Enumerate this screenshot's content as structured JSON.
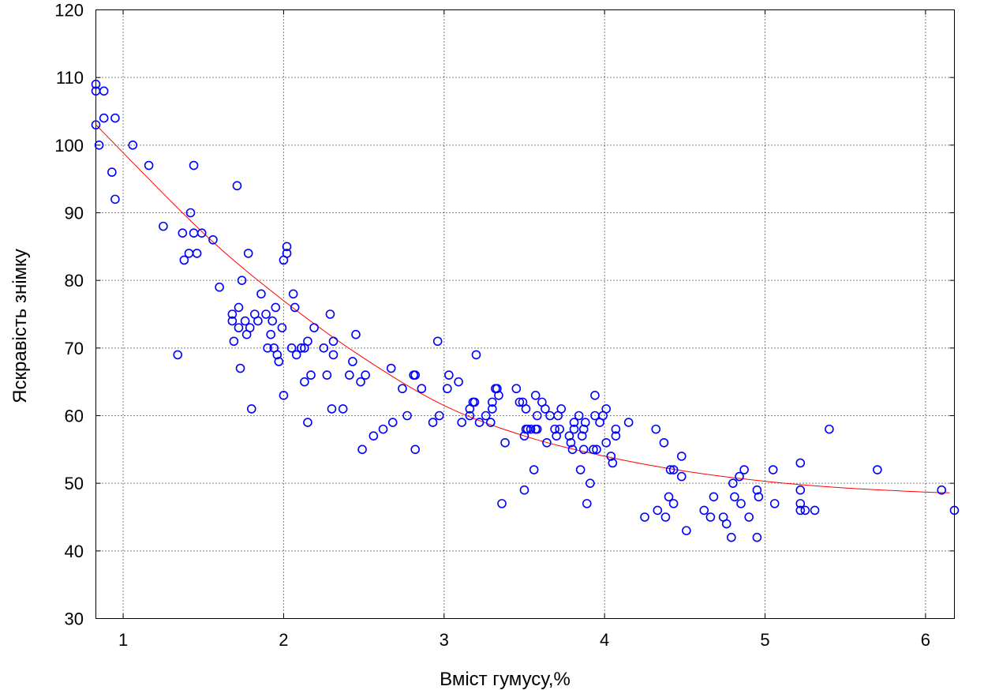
{
  "chart_data": {
    "type": "scatter",
    "xlabel": "Вміст гумусу,%",
    "ylabel": "Яскравість знімку",
    "xlim": [
      0.83,
      6.18
    ],
    "ylim": [
      30,
      120
    ],
    "xticks": [
      1,
      2,
      3,
      4,
      5,
      6
    ],
    "yticks": [
      30,
      40,
      50,
      60,
      70,
      80,
      90,
      100,
      110,
      120
    ],
    "grid": true,
    "point_color": "#0000ff",
    "fit_color": "#ff0000",
    "fit_curve": {
      "type": "quadratic",
      "x": [
        0.83,
        1.5,
        2.0,
        2.5,
        3.0,
        3.5,
        4.0,
        4.5,
        5.0,
        5.5,
        6.0,
        6.15
      ],
      "y": [
        103,
        87,
        77,
        68.5,
        61.5,
        57,
        54,
        51.8,
        50.3,
        49.3,
        48.7,
        48.6
      ]
    },
    "points": [
      [
        0.83,
        109
      ],
      [
        0.83,
        108
      ],
      [
        0.88,
        108
      ],
      [
        0.83,
        103
      ],
      [
        0.88,
        104
      ],
      [
        0.85,
        100
      ],
      [
        0.95,
        104
      ],
      [
        0.93,
        96
      ],
      [
        0.95,
        92
      ],
      [
        1.06,
        100
      ],
      [
        1.16,
        97
      ],
      [
        1.25,
        88
      ],
      [
        1.34,
        69
      ],
      [
        1.37,
        87
      ],
      [
        1.38,
        83
      ],
      [
        1.41,
        84
      ],
      [
        1.42,
        90
      ],
      [
        1.44,
        97
      ],
      [
        1.44,
        87
      ],
      [
        1.46,
        84
      ],
      [
        1.49,
        87
      ],
      [
        1.56,
        86
      ],
      [
        1.6,
        79
      ],
      [
        1.68,
        74
      ],
      [
        1.68,
        75
      ],
      [
        1.69,
        71
      ],
      [
        1.71,
        94
      ],
      [
        1.72,
        76
      ],
      [
        1.72,
        73
      ],
      [
        1.73,
        67
      ],
      [
        1.74,
        80
      ],
      [
        1.76,
        74
      ],
      [
        1.77,
        72
      ],
      [
        1.78,
        84
      ],
      [
        1.79,
        73
      ],
      [
        1.8,
        61
      ],
      [
        1.82,
        75
      ],
      [
        1.84,
        74
      ],
      [
        1.86,
        78
      ],
      [
        1.89,
        75
      ],
      [
        1.9,
        70
      ],
      [
        1.92,
        72
      ],
      [
        1.93,
        74
      ],
      [
        1.94,
        70
      ],
      [
        1.95,
        76
      ],
      [
        1.96,
        69
      ],
      [
        1.97,
        68
      ],
      [
        1.99,
        73
      ],
      [
        2.0,
        83
      ],
      [
        2.0,
        63
      ],
      [
        2.02,
        85
      ],
      [
        2.02,
        84
      ],
      [
        2.05,
        70
      ],
      [
        2.06,
        78
      ],
      [
        2.07,
        76
      ],
      [
        2.08,
        69
      ],
      [
        2.11,
        70
      ],
      [
        2.13,
        65
      ],
      [
        2.13,
        70
      ],
      [
        2.15,
        59
      ],
      [
        2.15,
        71
      ],
      [
        2.17,
        66
      ],
      [
        2.19,
        73
      ],
      [
        2.25,
        70
      ],
      [
        2.27,
        66
      ],
      [
        2.29,
        75
      ],
      [
        2.3,
        61
      ],
      [
        2.31,
        69
      ],
      [
        2.31,
        71
      ],
      [
        2.37,
        61
      ],
      [
        2.41,
        66
      ],
      [
        2.43,
        68
      ],
      [
        2.45,
        72
      ],
      [
        2.48,
        65
      ],
      [
        2.49,
        55
      ],
      [
        2.51,
        66
      ],
      [
        2.56,
        57
      ],
      [
        2.62,
        58
      ],
      [
        2.67,
        67
      ],
      [
        2.68,
        59
      ],
      [
        2.74,
        64
      ],
      [
        2.77,
        60
      ],
      [
        2.81,
        66
      ],
      [
        2.82,
        66
      ],
      [
        2.82,
        55
      ],
      [
        2.86,
        64
      ],
      [
        2.93,
        59
      ],
      [
        2.96,
        71
      ],
      [
        2.97,
        60
      ],
      [
        3.02,
        64
      ],
      [
        3.03,
        66
      ],
      [
        3.09,
        65
      ],
      [
        3.11,
        59
      ],
      [
        3.16,
        61
      ],
      [
        3.16,
        60
      ],
      [
        3.18,
        62
      ],
      [
        3.19,
        62
      ],
      [
        3.2,
        69
      ],
      [
        3.22,
        59
      ],
      [
        3.26,
        60
      ],
      [
        3.29,
        59
      ],
      [
        3.3,
        61
      ],
      [
        3.3,
        62
      ],
      [
        3.32,
        64
      ],
      [
        3.33,
        64
      ],
      [
        3.34,
        63
      ],
      [
        3.36,
        47
      ],
      [
        3.38,
        56
      ],
      [
        3.45,
        64
      ],
      [
        3.47,
        62
      ],
      [
        3.49,
        62
      ],
      [
        3.5,
        49
      ],
      [
        3.5,
        57
      ],
      [
        3.51,
        61
      ],
      [
        3.51,
        58
      ],
      [
        3.52,
        58
      ],
      [
        3.54,
        58
      ],
      [
        3.56,
        52
      ],
      [
        3.57,
        63
      ],
      [
        3.57,
        58
      ],
      [
        3.58,
        58
      ],
      [
        3.58,
        60
      ],
      [
        3.61,
        62
      ],
      [
        3.63,
        61
      ],
      [
        3.64,
        56
      ],
      [
        3.66,
        60
      ],
      [
        3.69,
        58
      ],
      [
        3.7,
        57
      ],
      [
        3.71,
        60
      ],
      [
        3.72,
        58
      ],
      [
        3.73,
        61
      ],
      [
        3.78,
        57
      ],
      [
        3.79,
        56
      ],
      [
        3.8,
        55
      ],
      [
        3.81,
        58
      ],
      [
        3.81,
        59
      ],
      [
        3.84,
        60
      ],
      [
        3.85,
        52
      ],
      [
        3.86,
        57
      ],
      [
        3.87,
        55
      ],
      [
        3.87,
        58
      ],
      [
        3.88,
        59
      ],
      [
        3.89,
        47
      ],
      [
        3.91,
        50
      ],
      [
        3.93,
        55
      ],
      [
        3.94,
        63
      ],
      [
        3.94,
        60
      ],
      [
        3.95,
        55
      ],
      [
        3.97,
        59
      ],
      [
        3.99,
        60
      ],
      [
        4.01,
        61
      ],
      [
        4.01,
        56
      ],
      [
        4.04,
        54
      ],
      [
        4.05,
        53
      ],
      [
        4.07,
        58
      ],
      [
        4.07,
        57
      ],
      [
        4.15,
        59
      ],
      [
        4.25,
        45
      ],
      [
        4.32,
        58
      ],
      [
        4.33,
        46
      ],
      [
        4.37,
        56
      ],
      [
        4.38,
        45
      ],
      [
        4.4,
        48
      ],
      [
        4.41,
        52
      ],
      [
        4.43,
        47
      ],
      [
        4.43,
        52
      ],
      [
        4.48,
        54
      ],
      [
        4.48,
        51
      ],
      [
        4.51,
        43
      ],
      [
        4.62,
        46
      ],
      [
        4.66,
        45
      ],
      [
        4.68,
        48
      ],
      [
        4.74,
        45
      ],
      [
        4.76,
        44
      ],
      [
        4.79,
        42
      ],
      [
        4.8,
        50
      ],
      [
        4.81,
        48
      ],
      [
        4.84,
        51
      ],
      [
        4.85,
        47
      ],
      [
        4.87,
        52
      ],
      [
        4.9,
        45
      ],
      [
        4.95,
        42
      ],
      [
        4.95,
        49
      ],
      [
        4.96,
        48
      ],
      [
        5.05,
        52
      ],
      [
        5.06,
        47
      ],
      [
        5.22,
        53
      ],
      [
        5.22,
        49
      ],
      [
        5.22,
        47
      ],
      [
        5.22,
        46
      ],
      [
        5.25,
        46
      ],
      [
        5.31,
        46
      ],
      [
        5.4,
        58
      ],
      [
        5.7,
        52
      ],
      [
        6.1,
        49
      ],
      [
        6.18,
        46
      ]
    ]
  }
}
